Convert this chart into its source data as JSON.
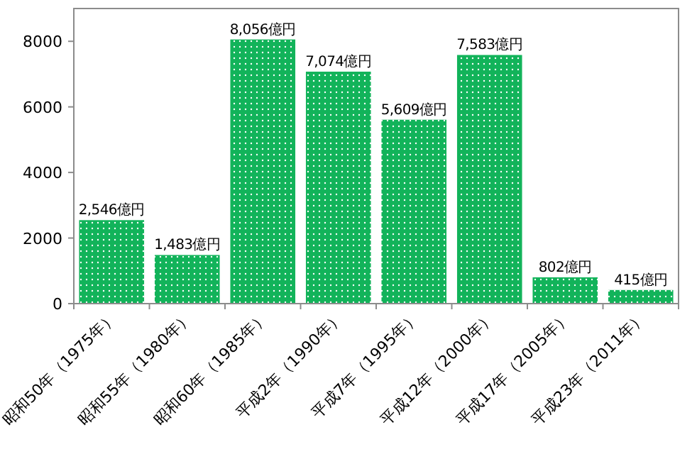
{
  "chart_data": {
    "type": "bar",
    "categories": [
      "昭和50年（1975年）",
      "昭和55年（1980年）",
      "昭和60年（1985年）",
      "平成2年（1990年）",
      "平成7年（1995年）",
      "平成12年（2000年）",
      "平成17年（2005年）",
      "平成23年（2011年）"
    ],
    "values": [
      2546,
      1483,
      8056,
      7074,
      5609,
      7583,
      802,
      415
    ],
    "value_labels": [
      "2,546億円",
      "1,483億円",
      "8,056億円",
      "7,074億円",
      "5,609億円",
      "7,583億円",
      "802億円",
      "415億円"
    ],
    "color": "#12b35a",
    "ylim": [
      0,
      9000
    ],
    "yticks": [
      0,
      2000,
      4000,
      6000,
      8000
    ],
    "grid": false
  }
}
